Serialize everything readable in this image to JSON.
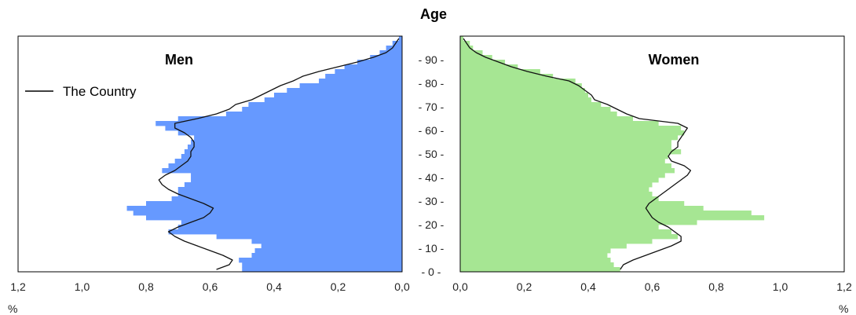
{
  "chart_data": {
    "type": "bar",
    "subtype": "population-pyramid",
    "title": "Age",
    "x_unit_label": "%",
    "xlim": [
      0,
      1.2
    ],
    "x_ticks": [
      "1,2",
      "1,0",
      "0,8",
      "0,6",
      "0,4",
      "0,2",
      "0,0"
    ],
    "x_ticks_right": [
      "0,0",
      "0,2",
      "0,4",
      "0,6",
      "0,8",
      "1,0",
      "1,2"
    ],
    "y_ticks": [
      "0",
      "10",
      "20",
      "30",
      "40",
      "50",
      "60",
      "70",
      "80",
      "90"
    ],
    "ylim": [
      0,
      100
    ],
    "legend": {
      "label": "The Country",
      "position": "top-left"
    },
    "panels": [
      {
        "name": "Men",
        "side": "left",
        "color": "#6699ff",
        "bars": [
          [
            0,
            0.5
          ],
          [
            2,
            0.5
          ],
          [
            4,
            0.51
          ],
          [
            6,
            0.47
          ],
          [
            8,
            0.46
          ],
          [
            10,
            0.44
          ],
          [
            12,
            0.47
          ],
          [
            14,
            0.58
          ],
          [
            16,
            0.73
          ],
          [
            18,
            0.7
          ],
          [
            20,
            0.69
          ],
          [
            22,
            0.8
          ],
          [
            24,
            0.84
          ],
          [
            26,
            0.86
          ],
          [
            28,
            0.8
          ],
          [
            30,
            0.72
          ],
          [
            32,
            0.7
          ],
          [
            34,
            0.7
          ],
          [
            36,
            0.68
          ],
          [
            38,
            0.66
          ],
          [
            40,
            0.66
          ],
          [
            42,
            0.75
          ],
          [
            44,
            0.73
          ],
          [
            46,
            0.71
          ],
          [
            48,
            0.69
          ],
          [
            50,
            0.68
          ],
          [
            52,
            0.67
          ],
          [
            54,
            0.66
          ],
          [
            56,
            0.65
          ],
          [
            58,
            0.7
          ],
          [
            60,
            0.74
          ],
          [
            62,
            0.77
          ],
          [
            64,
            0.7
          ],
          [
            66,
            0.55
          ],
          [
            68,
            0.5
          ],
          [
            70,
            0.48
          ],
          [
            72,
            0.43
          ],
          [
            74,
            0.4
          ],
          [
            76,
            0.36
          ],
          [
            78,
            0.32
          ],
          [
            80,
            0.26
          ],
          [
            82,
            0.24
          ],
          [
            84,
            0.21
          ],
          [
            86,
            0.18
          ],
          [
            88,
            0.14
          ],
          [
            90,
            0.1
          ],
          [
            92,
            0.07
          ],
          [
            94,
            0.05
          ],
          [
            96,
            0.03
          ],
          [
            98,
            0.01
          ]
        ],
        "line": [
          [
            0,
            0.58
          ],
          [
            2,
            0.54
          ],
          [
            4,
            0.53
          ],
          [
            6,
            0.56
          ],
          [
            8,
            0.6
          ],
          [
            10,
            0.64
          ],
          [
            12,
            0.68
          ],
          [
            14,
            0.71
          ],
          [
            16,
            0.73
          ],
          [
            18,
            0.7
          ],
          [
            20,
            0.66
          ],
          [
            22,
            0.62
          ],
          [
            24,
            0.6
          ],
          [
            26,
            0.59
          ],
          [
            28,
            0.62
          ],
          [
            30,
            0.66
          ],
          [
            32,
            0.7
          ],
          [
            34,
            0.73
          ],
          [
            36,
            0.75
          ],
          [
            38,
            0.76
          ],
          [
            40,
            0.74
          ],
          [
            42,
            0.71
          ],
          [
            44,
            0.69
          ],
          [
            46,
            0.67
          ],
          [
            48,
            0.66
          ],
          [
            50,
            0.66
          ],
          [
            52,
            0.65
          ],
          [
            54,
            0.65
          ],
          [
            56,
            0.66
          ],
          [
            58,
            0.68
          ],
          [
            60,
            0.71
          ],
          [
            62,
            0.71
          ],
          [
            64,
            0.64
          ],
          [
            66,
            0.58
          ],
          [
            68,
            0.54
          ],
          [
            70,
            0.52
          ],
          [
            72,
            0.47
          ],
          [
            74,
            0.44
          ],
          [
            76,
            0.41
          ],
          [
            78,
            0.38
          ],
          [
            80,
            0.34
          ],
          [
            82,
            0.31
          ],
          [
            84,
            0.26
          ],
          [
            86,
            0.2
          ],
          [
            88,
            0.14
          ],
          [
            90,
            0.09
          ],
          [
            92,
            0.05
          ],
          [
            94,
            0.03
          ],
          [
            96,
            0.02
          ],
          [
            98,
            0.01
          ]
        ]
      },
      {
        "name": "Women",
        "side": "right",
        "color": "#a6e693",
        "bars": [
          [
            0,
            0.5
          ],
          [
            2,
            0.48
          ],
          [
            4,
            0.47
          ],
          [
            6,
            0.46
          ],
          [
            8,
            0.47
          ],
          [
            10,
            0.52
          ],
          [
            12,
            0.6
          ],
          [
            14,
            0.68
          ],
          [
            16,
            0.66
          ],
          [
            18,
            0.62
          ],
          [
            20,
            0.74
          ],
          [
            22,
            0.95
          ],
          [
            24,
            0.91
          ],
          [
            26,
            0.76
          ],
          [
            28,
            0.7
          ],
          [
            30,
            0.62
          ],
          [
            32,
            0.6
          ],
          [
            34,
            0.59
          ],
          [
            36,
            0.6
          ],
          [
            38,
            0.62
          ],
          [
            40,
            0.64
          ],
          [
            42,
            0.67
          ],
          [
            44,
            0.66
          ],
          [
            46,
            0.64
          ],
          [
            48,
            0.65
          ],
          [
            50,
            0.69
          ],
          [
            52,
            0.66
          ],
          [
            54,
            0.66
          ],
          [
            56,
            0.68
          ],
          [
            58,
            0.7
          ],
          [
            60,
            0.69
          ],
          [
            62,
            0.62
          ],
          [
            64,
            0.54
          ],
          [
            66,
            0.49
          ],
          [
            68,
            0.47
          ],
          [
            70,
            0.44
          ],
          [
            72,
            0.41
          ],
          [
            74,
            0.4
          ],
          [
            76,
            0.39
          ],
          [
            78,
            0.38
          ],
          [
            80,
            0.36
          ],
          [
            82,
            0.29
          ],
          [
            84,
            0.25
          ],
          [
            86,
            0.18
          ],
          [
            88,
            0.14
          ],
          [
            90,
            0.1
          ],
          [
            92,
            0.07
          ],
          [
            94,
            0.04
          ],
          [
            96,
            0.03
          ],
          [
            98,
            0.01
          ]
        ],
        "line": [
          [
            0,
            0.5
          ],
          [
            2,
            0.51
          ],
          [
            4,
            0.54
          ],
          [
            6,
            0.58
          ],
          [
            8,
            0.62
          ],
          [
            10,
            0.66
          ],
          [
            12,
            0.69
          ],
          [
            14,
            0.69
          ],
          [
            16,
            0.67
          ],
          [
            18,
            0.65
          ],
          [
            20,
            0.62
          ],
          [
            22,
            0.6
          ],
          [
            24,
            0.59
          ],
          [
            26,
            0.58
          ],
          [
            28,
            0.59
          ],
          [
            30,
            0.61
          ],
          [
            32,
            0.63
          ],
          [
            34,
            0.65
          ],
          [
            36,
            0.67
          ],
          [
            38,
            0.69
          ],
          [
            40,
            0.71
          ],
          [
            42,
            0.72
          ],
          [
            44,
            0.7
          ],
          [
            46,
            0.66
          ],
          [
            48,
            0.65
          ],
          [
            50,
            0.66
          ],
          [
            52,
            0.68
          ],
          [
            54,
            0.68
          ],
          [
            56,
            0.69
          ],
          [
            58,
            0.7
          ],
          [
            60,
            0.71
          ],
          [
            62,
            0.68
          ],
          [
            64,
            0.56
          ],
          [
            66,
            0.52
          ],
          [
            68,
            0.49
          ],
          [
            70,
            0.46
          ],
          [
            72,
            0.42
          ],
          [
            74,
            0.41
          ],
          [
            76,
            0.39
          ],
          [
            78,
            0.37
          ],
          [
            80,
            0.34
          ],
          [
            82,
            0.27
          ],
          [
            84,
            0.21
          ],
          [
            86,
            0.16
          ],
          [
            88,
            0.12
          ],
          [
            90,
            0.08
          ],
          [
            92,
            0.05
          ],
          [
            94,
            0.03
          ],
          [
            96,
            0.02
          ],
          [
            98,
            0.01
          ]
        ]
      }
    ]
  }
}
